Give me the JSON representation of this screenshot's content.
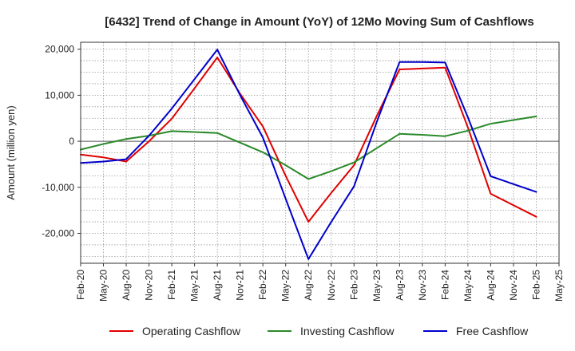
{
  "chart_data": {
    "type": "line",
    "title": "[6432]  Trend of Change in Amount (YoY) of 12Mo Moving Sum of Cashflows",
    "xlabel": "",
    "ylabel": "Amount (million yen)",
    "ylim": [
      -26500,
      21500
    ],
    "yticks": [
      20000,
      10000,
      0,
      -10000,
      -20000
    ],
    "ytick_labels": [
      "20,000",
      "10,000",
      "0",
      "-10,000",
      "-20,000"
    ],
    "categories": [
      "Feb-20",
      "May-20",
      "Aug-20",
      "Nov-20",
      "Feb-21",
      "May-21",
      "Aug-21",
      "Nov-21",
      "Feb-22",
      "May-22",
      "Aug-22",
      "Nov-22",
      "Feb-23",
      "May-23",
      "Aug-23",
      "Nov-23",
      "Feb-24",
      "May-24",
      "Aug-24",
      "Nov-24",
      "Feb-25",
      "May-25"
    ],
    "grid": true,
    "legend_position": "bottom",
    "series": [
      {
        "name": "Operating Cashflow",
        "color": "#e00000",
        "values": [
          -2900,
          -3500,
          -4400,
          0,
          4900,
          11500,
          18200,
          10300,
          3200,
          -7500,
          -17500,
          -11200,
          -5200,
          5500,
          15600,
          15800,
          16000,
          3000,
          -11400,
          null,
          -16400,
          null
        ]
      },
      {
        "name": "Investing Cashflow",
        "color": "#2a8a2a",
        "values": [
          -1800,
          -600,
          500,
          1200,
          2200,
          2000,
          1800,
          -300,
          -2400,
          -5200,
          -8200,
          -6500,
          -4600,
          -1500,
          1600,
          1400,
          1100,
          2300,
          3800,
          null,
          5400,
          null
        ]
      },
      {
        "name": "Free Cashflow",
        "color": "#0000cc",
        "values": [
          -4700,
          -4400,
          -3900,
          1200,
          7100,
          13500,
          19900,
          10000,
          800,
          -12500,
          -25600,
          -17500,
          -9800,
          4200,
          17200,
          17200,
          17100,
          5200,
          -7600,
          null,
          -11000,
          null
        ]
      }
    ]
  }
}
